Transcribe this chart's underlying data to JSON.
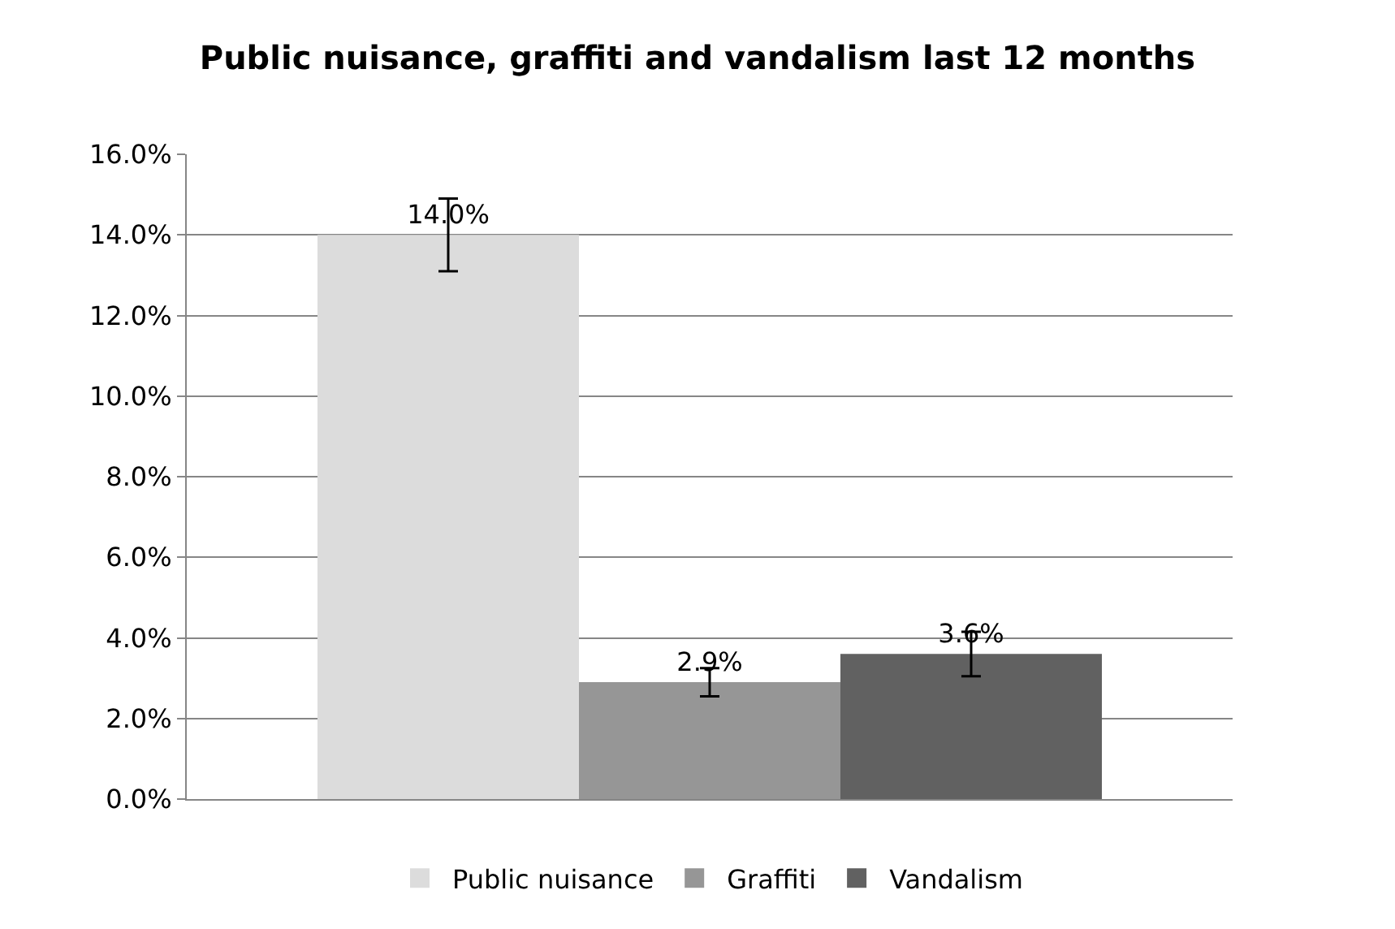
{
  "chart_data": {
    "type": "bar",
    "title": "Public nuisance, graffiti and vandalism last 12 months",
    "categories": [
      null
    ],
    "series": [
      {
        "name": "Public nuisance",
        "color": "#dcdcdc",
        "values": [
          14.0
        ],
        "errors": [
          0.9
        ],
        "value_labels": [
          "14.0%"
        ]
      },
      {
        "name": "Graffiti",
        "color": "#969696",
        "values": [
          2.9
        ],
        "errors": [
          0.35
        ],
        "value_labels": [
          "2.9%"
        ]
      },
      {
        "name": "Vandalism",
        "color": "#616161",
        "values": [
          3.6
        ],
        "errors": [
          0.55
        ],
        "value_labels": [
          "3.6%"
        ]
      }
    ],
    "ylim": [
      0,
      16
    ],
    "yticks": [
      {
        "value": 0,
        "label": "0.0%"
      },
      {
        "value": 2,
        "label": "2.0%"
      },
      {
        "value": 4,
        "label": "4.0%"
      },
      {
        "value": 6,
        "label": "6.0%"
      },
      {
        "value": 8,
        "label": "8.0%"
      },
      {
        "value": 10,
        "label": "10.0%"
      },
      {
        "value": 12,
        "label": "12.0%"
      },
      {
        "value": 14,
        "label": "14.0%"
      },
      {
        "value": 16,
        "label": "16.0%"
      }
    ],
    "grid": "y",
    "legend": "bottom"
  }
}
